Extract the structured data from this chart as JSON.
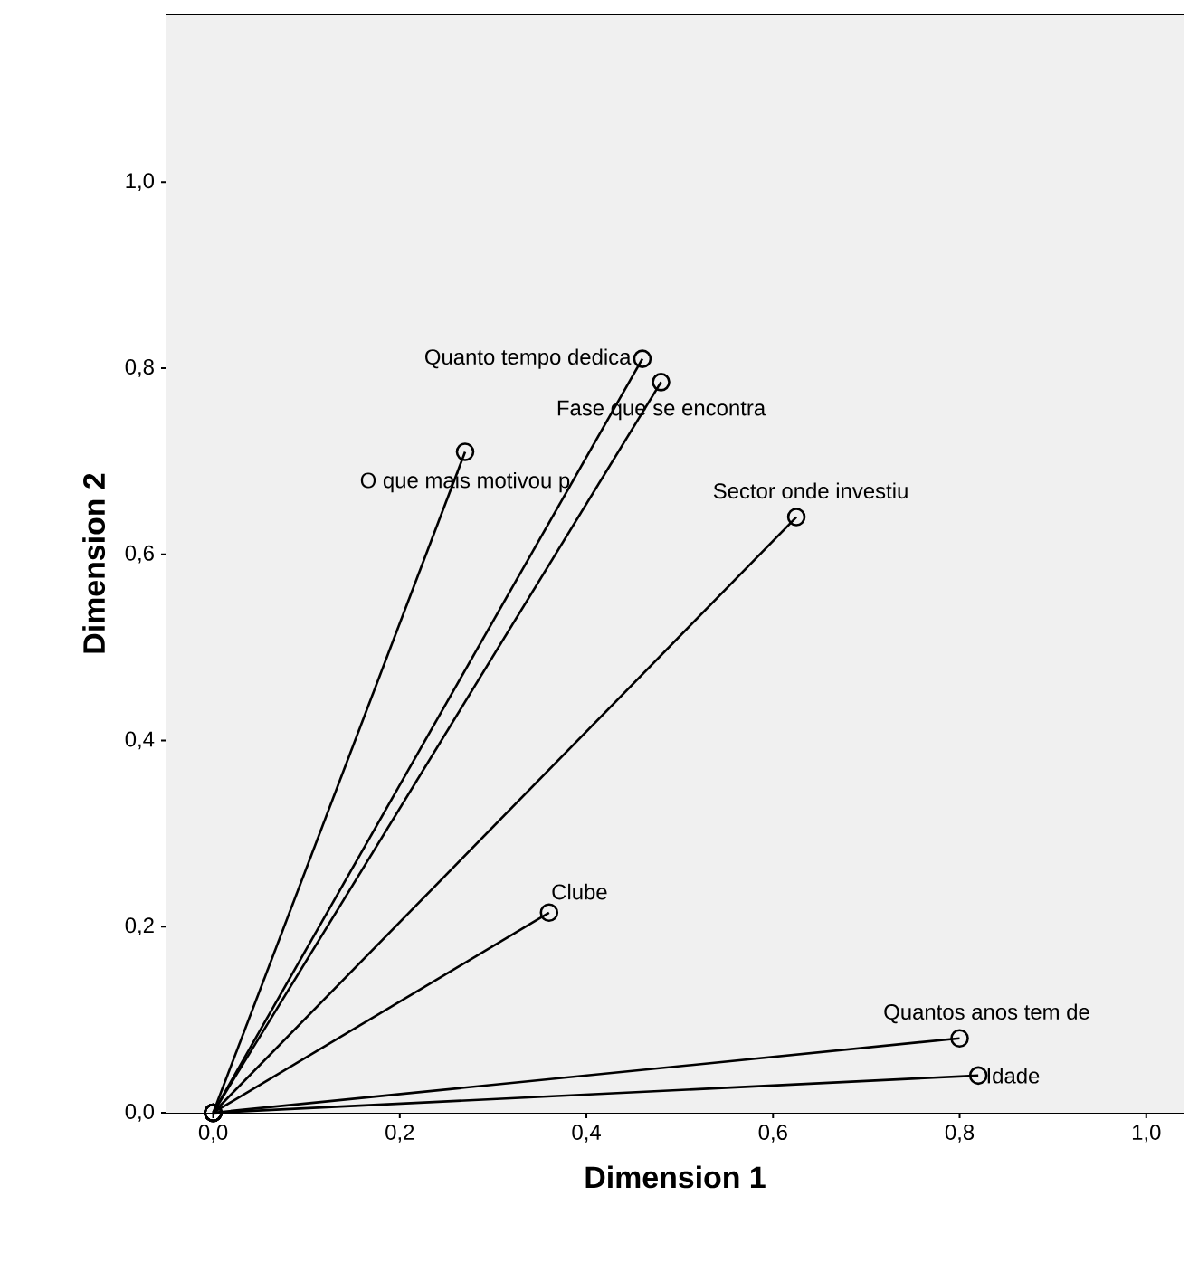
{
  "chart_data": {
    "type": "line",
    "xlabel": "Dimension 1",
    "ylabel": "Dimension 2",
    "marker": "circle",
    "line_style": "solid",
    "xlim": [
      -0.05,
      1.04
    ],
    "ylim": [
      0,
      1.18
    ],
    "xticks": [
      {
        "value": 0,
        "label": "0,0"
      },
      {
        "value": 0.2,
        "label": "0,2"
      },
      {
        "value": 0.4,
        "label": "0,4"
      },
      {
        "value": 0.6,
        "label": "0,6"
      },
      {
        "value": 0.8,
        "label": "0,8"
      },
      {
        "value": 1.0,
        "label": "1,0"
      }
    ],
    "yticks": [
      {
        "value": 0,
        "label": "0,0"
      },
      {
        "value": 0.2,
        "label": "0,2"
      },
      {
        "value": 0.4,
        "label": "0,4"
      },
      {
        "value": 0.6,
        "label": "0,6"
      },
      {
        "value": 0.8,
        "label": "0,8"
      },
      {
        "value": 1.0,
        "label": "1,0"
      }
    ],
    "series": [
      {
        "name": "Quanto tempo dedica",
        "color": "#000000",
        "x": [
          0,
          0.46
        ],
        "values": [
          0,
          0.81
        ]
      },
      {
        "name": "Fase que se encontra",
        "color": "#000000",
        "x": [
          0,
          0.48
        ],
        "values": [
          0,
          0.785
        ]
      },
      {
        "name": "O que mais motivou p",
        "color": "#000000",
        "x": [
          0,
          0.27
        ],
        "values": [
          0,
          0.71
        ]
      },
      {
        "name": "Sector onde investiu",
        "color": "#000000",
        "x": [
          0,
          0.625
        ],
        "values": [
          0,
          0.64
        ]
      },
      {
        "name": "Clube",
        "color": "#000000",
        "x": [
          0,
          0.36
        ],
        "values": [
          0,
          0.215
        ]
      },
      {
        "name": "Quantos anos tem de",
        "color": "#000000",
        "x": [
          0,
          0.8
        ],
        "values": [
          0,
          0.08
        ]
      },
      {
        "name": "Idade",
        "color": "#000000",
        "x": [
          0,
          0.82
        ],
        "values": [
          0,
          0.04
        ]
      }
    ]
  }
}
